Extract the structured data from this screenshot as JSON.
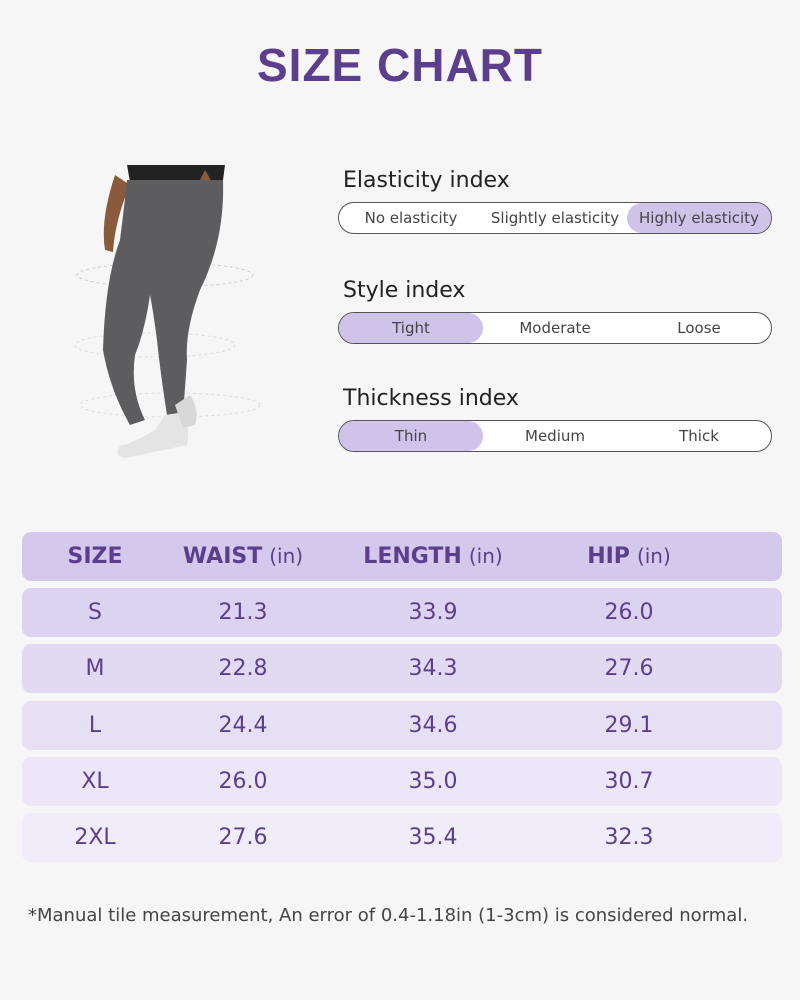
{
  "title": "SIZE CHART",
  "indices": [
    {
      "label": "Elasticity index",
      "options": [
        "No elasticity",
        "Slightly elasticity",
        "Highly elasticity"
      ],
      "selected": 2
    },
    {
      "label": "Style index",
      "options": [
        "Tight",
        "Moderate",
        "Loose"
      ],
      "selected": 0
    },
    {
      "label": "Thickness index",
      "options": [
        "Thin",
        "Medium",
        "Thick"
      ],
      "selected": 0
    }
  ],
  "table": {
    "header": [
      {
        "name": "SIZE"
      },
      {
        "name": "WAIST",
        "unit": "(in)"
      },
      {
        "name": "LENGTH",
        "unit": "(in)"
      },
      {
        "name": "HIP",
        "unit": "(in)"
      }
    ],
    "rows": [
      [
        "S",
        "21.3",
        "33.9",
        "26.0"
      ],
      [
        "M",
        "22.8",
        "34.3",
        "27.6"
      ],
      [
        "L",
        "24.4",
        "34.6",
        "29.1"
      ],
      [
        "XL",
        "26.0",
        "35.0",
        "30.7"
      ],
      [
        "2XL",
        "27.6",
        "35.4",
        "32.3"
      ]
    ]
  },
  "footnote": "*Manual tile measurement, An error of 0.4-1.18in (1-3cm) is considered normal."
}
